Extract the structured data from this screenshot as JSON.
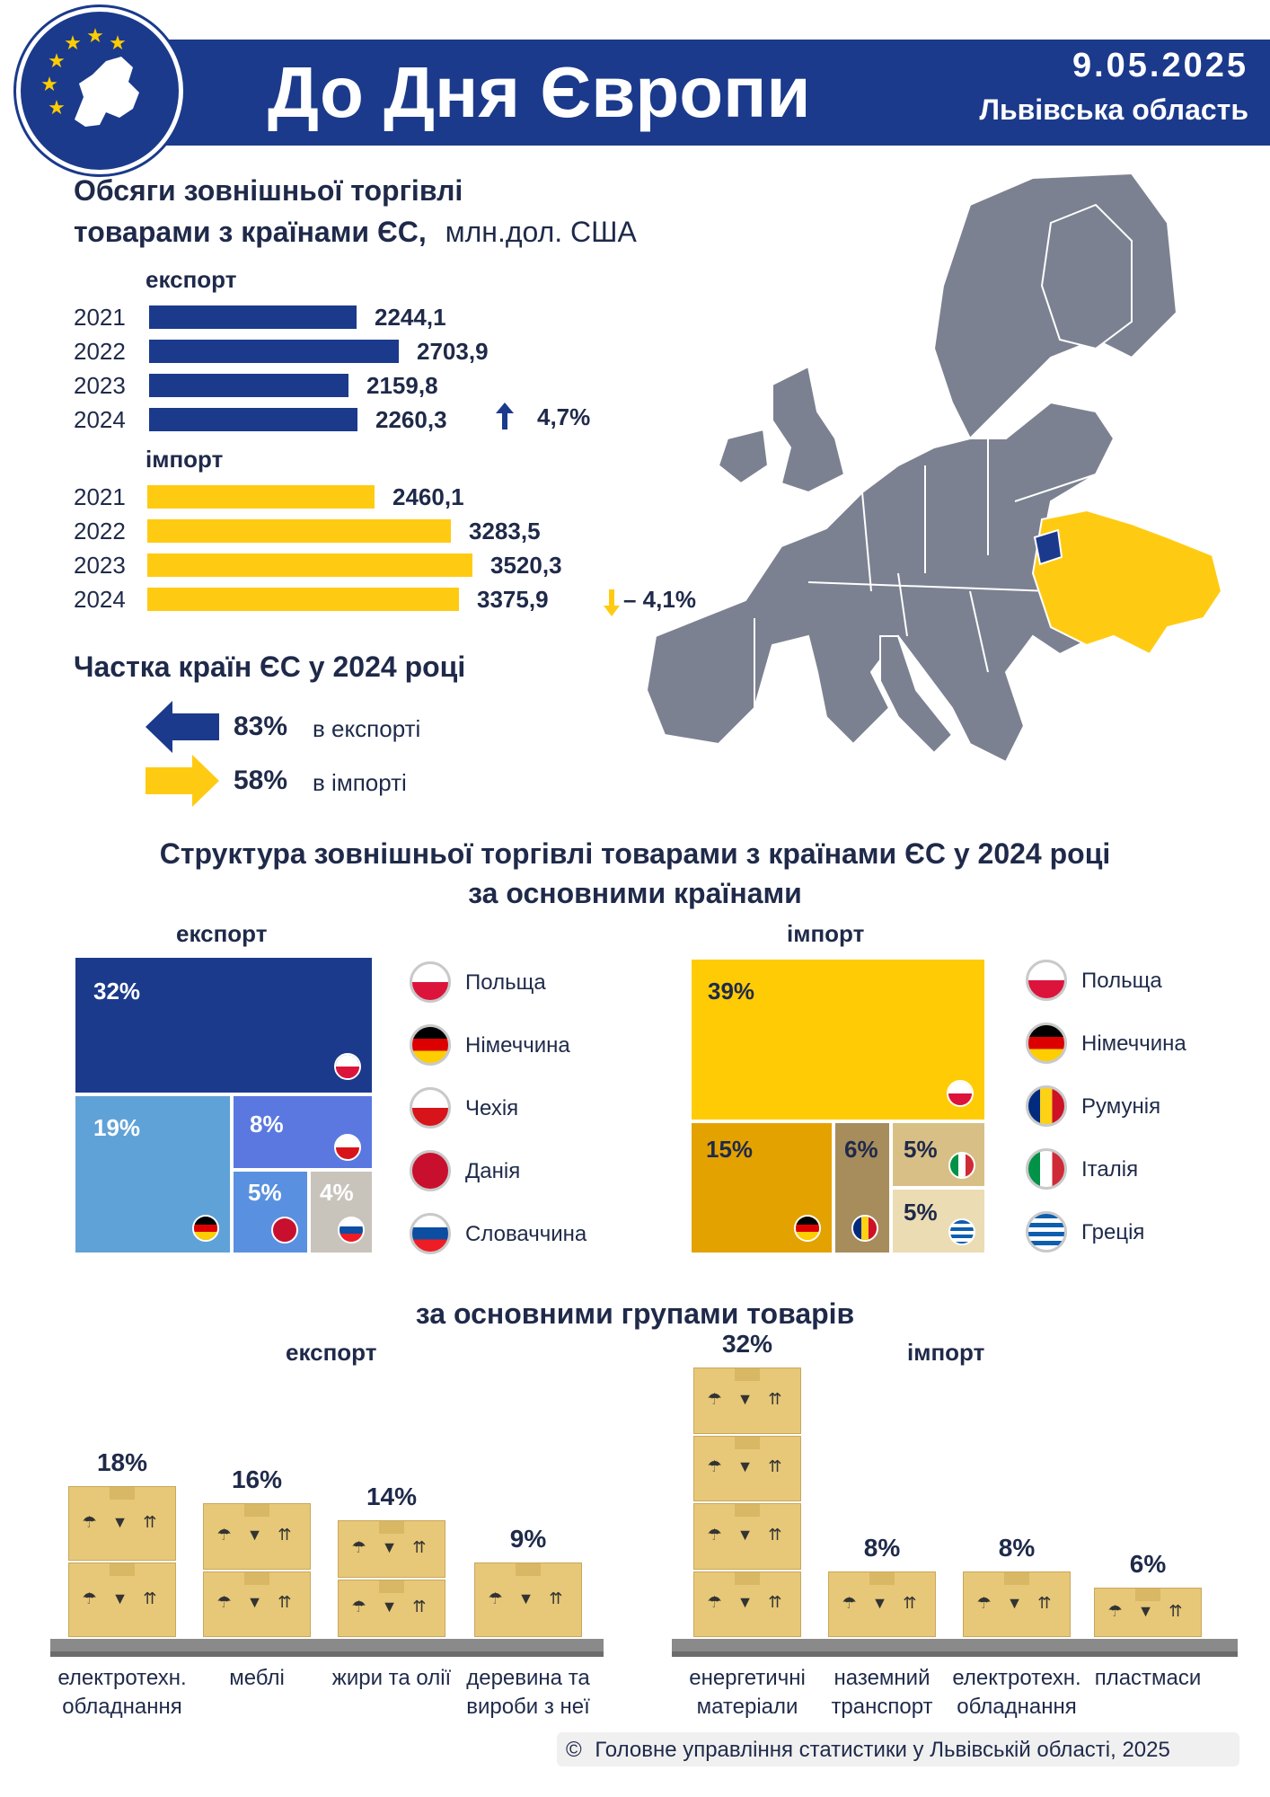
{
  "header": {
    "title": "До Дня Європи",
    "date": "9.05.2025",
    "region": "Львівська область"
  },
  "trade_volume": {
    "title_line1": "Обсяги зовнішньої торгівлі",
    "title_line2": "товарами з країнами ЄС,",
    "unit": "млн.дол. США",
    "export_label": "експорт",
    "import_label": "імпорт",
    "export_change": "4,7%",
    "import_change": "– 4,1%"
  },
  "share": {
    "title": "Частка країн ЄС у 2024 році",
    "export_pct": "83%",
    "export_text": "в експорті",
    "import_pct": "58%",
    "import_text": "в імпорті"
  },
  "structure": {
    "title_line1": "Структура зовнішньої торгівлі товарами з країнами ЄС у 2024 році",
    "title_line2": "за основними країнами",
    "export_label": "експорт",
    "import_label": "імпорт",
    "export_legend": [
      "Польща",
      "Німеччина",
      "Чехія",
      "Данія",
      "Словаччина"
    ],
    "import_legend": [
      "Польща",
      "Німеччина",
      "Румунія",
      "Італія",
      "Греція"
    ]
  },
  "groups": {
    "title": "за основними групами товарів",
    "export_label": "експорт",
    "import_label": "імпорт"
  },
  "footer": {
    "symbol": "©",
    "text": "Головне управління статистики у Львівській області, 2025"
  },
  "colors": {
    "navy": "#1b3a8c",
    "yellow": "#ffcb12",
    "map_grey": "#7c8191",
    "ukraine": "#ffcb12"
  },
  "chart_data": [
    {
      "type": "bar",
      "title": "експорт",
      "categories": [
        "2021",
        "2022",
        "2023",
        "2024"
      ],
      "values": [
        2244.1,
        2703.9,
        2159.8,
        2260.3
      ],
      "labels": [
        "2244,1",
        "2703,9",
        "2159,8",
        "2260,3"
      ],
      "xlim": [
        0,
        3520.3
      ],
      "xlabel": "",
      "ylabel": ""
    },
    {
      "type": "bar",
      "title": "імпорт",
      "categories": [
        "2021",
        "2022",
        "2023",
        "2024"
      ],
      "values": [
        2460.1,
        3283.5,
        3520.3,
        3375.9
      ],
      "labels": [
        "2460,1",
        "3283,5",
        "3520,3",
        "3375,9"
      ],
      "xlim": [
        0,
        3520.3
      ],
      "xlabel": "",
      "ylabel": ""
    },
    {
      "type": "treemap",
      "title": "експорт",
      "items": [
        {
          "country": "Польща",
          "value": 32,
          "label": "32%"
        },
        {
          "country": "Німеччина",
          "value": 19,
          "label": "19%"
        },
        {
          "country": "Чехія",
          "value": 8,
          "label": "8%"
        },
        {
          "country": "Данія",
          "value": 5,
          "label": "5%"
        },
        {
          "country": "Словаччина",
          "value": 4,
          "label": "4%"
        }
      ]
    },
    {
      "type": "treemap",
      "title": "імпорт",
      "items": [
        {
          "country": "Польща",
          "value": 39,
          "label": "39%"
        },
        {
          "country": "Німеччина",
          "value": 15,
          "label": "15%"
        },
        {
          "country": "Румунія",
          "value": 6,
          "label": "6%"
        },
        {
          "country": "Італія",
          "value": 5,
          "label": "5%"
        },
        {
          "country": "Греція",
          "value": 5,
          "label": "5%"
        }
      ]
    },
    {
      "type": "bar",
      "title": "експорт",
      "categories": [
        "електротехн. обладнання",
        "меблі",
        "жири та олії",
        "деревина та вироби з неї"
      ],
      "values": [
        18,
        16,
        14,
        9
      ],
      "labels": [
        "18%",
        "16%",
        "14%",
        "9%"
      ],
      "xlabel": "",
      "ylabel": ""
    },
    {
      "type": "bar",
      "title": "імпорт",
      "categories": [
        "енергетичні матеріали",
        "наземний транспорт",
        "електротехн. обладнання",
        "пластмаси"
      ],
      "values": [
        32,
        8,
        8,
        6
      ],
      "labels": [
        "32%",
        "8%",
        "8%",
        "6%"
      ],
      "xlabel": "",
      "ylabel": ""
    }
  ]
}
